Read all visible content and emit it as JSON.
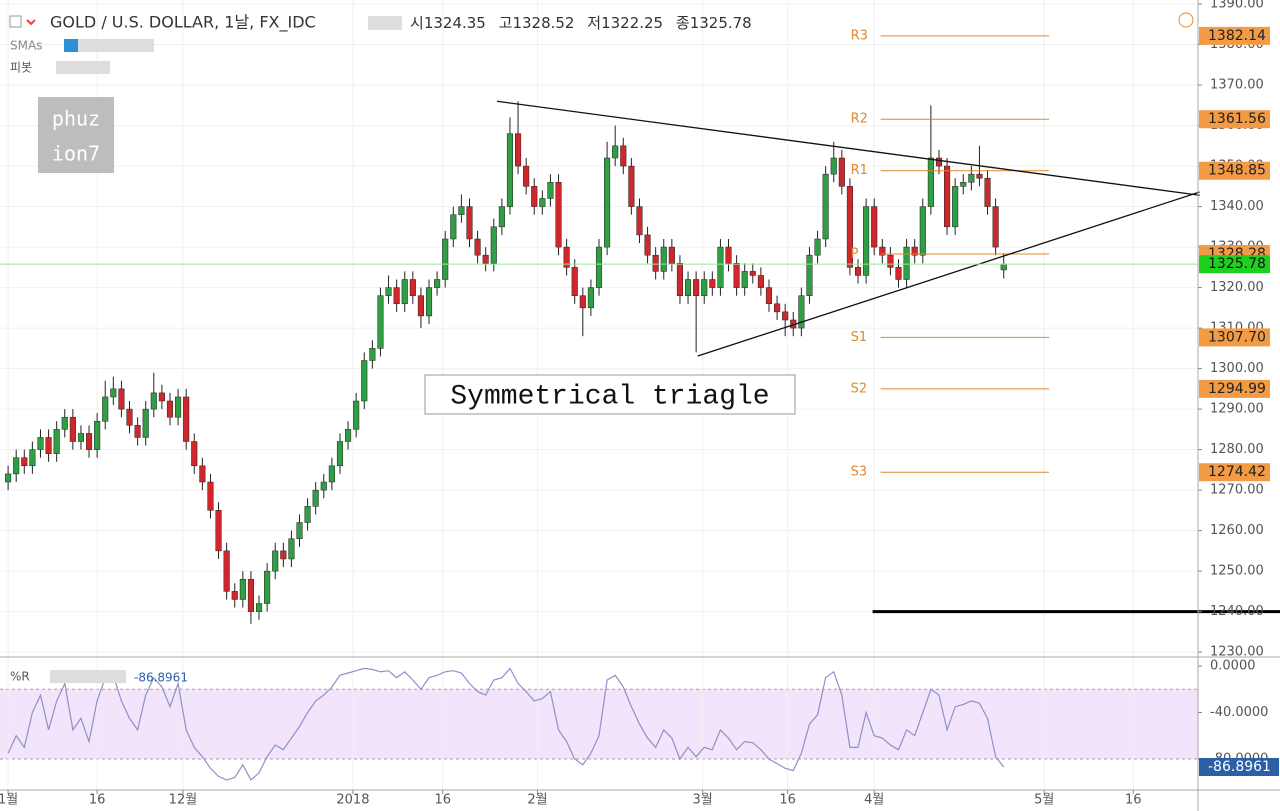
{
  "chart_data": {
    "type": "candlestick",
    "title": "GOLD / U.S. DOLLAR, 1날, FX_IDC",
    "ohlc_labels": [
      "시",
      "고",
      "저",
      "종"
    ],
    "indicators": [
      "SMAs",
      "피봇"
    ],
    "watermark": [
      "phuz",
      "ion7"
    ],
    "annotation": "Symmetrical triagle",
    "colors": {
      "up": "#2f9e44",
      "down": "#d0272c",
      "pivot": "#e0882f",
      "last": "#1fd11f",
      "wr": "#8c92c8",
      "band": "#f1e4fb"
    },
    "xlim": [
      -1,
      147
    ],
    "xticks": [
      {
        "value": 0,
        "label": "1월"
      },
      {
        "value": 11,
        "label": "16"
      },
      {
        "value": 21.6,
        "label": "12월"
      },
      {
        "value": 42.6,
        "label": "2018"
      },
      {
        "value": 53.7,
        "label": "16"
      },
      {
        "value": 65.4,
        "label": "2월"
      },
      {
        "value": 85.8,
        "label": "3월"
      },
      {
        "value": 96.3,
        "label": "16"
      },
      {
        "value": 107,
        "label": "4월"
      },
      {
        "value": 128,
        "label": "5월"
      },
      {
        "value": 139,
        "label": "16"
      }
    ],
    "ylim": [
      1228.8,
      1391
    ],
    "yticks": [
      {
        "value": 1230,
        "label": "1230.00"
      },
      {
        "value": 1240,
        "label": "1240.00"
      },
      {
        "value": 1250,
        "label": "1250.00"
      },
      {
        "value": 1260,
        "label": "1260.00"
      },
      {
        "value": 1270,
        "label": "1270.00"
      },
      {
        "value": 1280,
        "label": "1280.00"
      },
      {
        "value": 1290,
        "label": "1290.00"
      },
      {
        "value": 1300,
        "label": "1300.00"
      },
      {
        "value": 1310,
        "label": "1310.00"
      },
      {
        "value": 1320,
        "label": "1320.00"
      },
      {
        "value": 1330,
        "label": "1330.00"
      },
      {
        "value": 1340,
        "label": "1340.00"
      },
      {
        "value": 1350,
        "label": "1350.00"
      },
      {
        "value": 1360,
        "label": "1360.00"
      },
      {
        "value": 1370,
        "label": "1370.00"
      },
      {
        "value": 1380,
        "label": "1380.00"
      },
      {
        "value": 1390,
        "label": "1390.00"
      }
    ],
    "ohlc": [
      [
        1272,
        1276,
        1270,
        1274
      ],
      [
        1274,
        1280,
        1272,
        1278
      ],
      [
        1278,
        1280,
        1274,
        1276
      ],
      [
        1276,
        1282,
        1274,
        1280
      ],
      [
        1280,
        1285,
        1278,
        1283
      ],
      [
        1283,
        1285,
        1277,
        1279
      ],
      [
        1279,
        1287,
        1277,
        1285
      ],
      [
        1285,
        1290,
        1283,
        1288
      ],
      [
        1288,
        1290,
        1280,
        1282
      ],
      [
        1282,
        1286,
        1280,
        1284
      ],
      [
        1284,
        1286,
        1278,
        1280
      ],
      [
        1280,
        1289,
        1278,
        1287
      ],
      [
        1287,
        1297,
        1285,
        1293
      ],
      [
        1293,
        1298,
        1291,
        1295
      ],
      [
        1295,
        1297,
        1288,
        1290
      ],
      [
        1290,
        1292,
        1284,
        1286
      ],
      [
        1286,
        1288,
        1281,
        1283
      ],
      [
        1283,
        1292,
        1281,
        1290
      ],
      [
        1290,
        1299,
        1288,
        1294
      ],
      [
        1294,
        1296,
        1290,
        1292
      ],
      [
        1292,
        1294,
        1286,
        1288
      ],
      [
        1288,
        1295,
        1286,
        1293
      ],
      [
        1293,
        1295,
        1280,
        1282
      ],
      [
        1282,
        1284,
        1274,
        1276
      ],
      [
        1276,
        1278,
        1270,
        1272
      ],
      [
        1272,
        1274,
        1263,
        1265
      ],
      [
        1265,
        1267,
        1253,
        1255
      ],
      [
        1255,
        1257,
        1243,
        1245
      ],
      [
        1245,
        1247,
        1241,
        1243
      ],
      [
        1243,
        1250,
        1241,
        1248
      ],
      [
        1248,
        1250,
        1237,
        1240
      ],
      [
        1240,
        1244,
        1238,
        1242
      ],
      [
        1242,
        1252,
        1240,
        1250
      ],
      [
        1250,
        1257,
        1248,
        1255
      ],
      [
        1255,
        1257,
        1251,
        1253
      ],
      [
        1253,
        1260,
        1251,
        1258
      ],
      [
        1258,
        1264,
        1256,
        1262
      ],
      [
        1262,
        1268,
        1260,
        1266
      ],
      [
        1266,
        1272,
        1264,
        1270
      ],
      [
        1270,
        1274,
        1268,
        1272
      ],
      [
        1272,
        1278,
        1270,
        1276
      ],
      [
        1276,
        1284,
        1274,
        1282
      ],
      [
        1282,
        1287,
        1280,
        1285
      ],
      [
        1285,
        1294,
        1283,
        1292
      ],
      [
        1292,
        1304,
        1290,
        1302
      ],
      [
        1302,
        1307,
        1300,
        1305
      ],
      [
        1305,
        1320,
        1303,
        1318
      ],
      [
        1318,
        1323,
        1316,
        1320
      ],
      [
        1320,
        1322,
        1314,
        1316
      ],
      [
        1316,
        1324,
        1314,
        1322
      ],
      [
        1322,
        1324,
        1316,
        1318
      ],
      [
        1318,
        1320,
        1310,
        1313
      ],
      [
        1313,
        1322,
        1311,
        1320
      ],
      [
        1320,
        1324,
        1318,
        1322
      ],
      [
        1322,
        1334,
        1320,
        1332
      ],
      [
        1332,
        1340,
        1330,
        1338
      ],
      [
        1338,
        1343,
        1336,
        1340
      ],
      [
        1340,
        1342,
        1330,
        1332
      ],
      [
        1332,
        1334,
        1326,
        1328
      ],
      [
        1328,
        1330,
        1324,
        1326
      ],
      [
        1326,
        1337,
        1324,
        1335
      ],
      [
        1335,
        1342,
        1333,
        1340
      ],
      [
        1340,
        1362,
        1338,
        1358
      ],
      [
        1358,
        1366,
        1348,
        1350
      ],
      [
        1350,
        1352,
        1343,
        1345
      ],
      [
        1345,
        1347,
        1338,
        1340
      ],
      [
        1340,
        1344,
        1338,
        1342
      ],
      [
        1342,
        1348,
        1340,
        1346
      ],
      [
        1346,
        1348,
        1328,
        1330
      ],
      [
        1330,
        1332,
        1323,
        1325
      ],
      [
        1325,
        1327,
        1316,
        1318
      ],
      [
        1318,
        1320,
        1308,
        1315
      ],
      [
        1315,
        1322,
        1313,
        1320
      ],
      [
        1320,
        1332,
        1318,
        1330
      ],
      [
        1330,
        1356,
        1328,
        1352
      ],
      [
        1352,
        1360,
        1350,
        1355
      ],
      [
        1355,
        1357,
        1348,
        1350
      ],
      [
        1350,
        1352,
        1338,
        1340
      ],
      [
        1340,
        1342,
        1331,
        1333
      ],
      [
        1333,
        1335,
        1326,
        1328
      ],
      [
        1328,
        1330,
        1322,
        1324
      ],
      [
        1324,
        1332,
        1322,
        1330
      ],
      [
        1330,
        1332,
        1324,
        1326
      ],
      [
        1326,
        1328,
        1316,
        1318
      ],
      [
        1318,
        1324,
        1316,
        1322
      ],
      [
        1322,
        1324,
        1304,
        1318
      ],
      [
        1318,
        1324,
        1316,
        1322
      ],
      [
        1322,
        1324,
        1318,
        1320
      ],
      [
        1320,
        1332,
        1318,
        1330
      ],
      [
        1330,
        1332,
        1324,
        1326
      ],
      [
        1326,
        1328,
        1318,
        1320
      ],
      [
        1320,
        1326,
        1318,
        1324
      ],
      [
        1324,
        1326,
        1321,
        1323
      ],
      [
        1323,
        1325,
        1318,
        1320
      ],
      [
        1320,
        1322,
        1314,
        1316
      ],
      [
        1316,
        1318,
        1312,
        1314
      ],
      [
        1314,
        1316,
        1308,
        1312
      ],
      [
        1312,
        1314,
        1308,
        1310
      ],
      [
        1310,
        1320,
        1308,
        1318
      ],
      [
        1318,
        1330,
        1316,
        1328
      ],
      [
        1328,
        1334,
        1326,
        1332
      ],
      [
        1332,
        1350,
        1330,
        1348
      ],
      [
        1348,
        1356,
        1346,
        1352
      ],
      [
        1352,
        1354,
        1343,
        1345
      ],
      [
        1345,
        1347,
        1323,
        1325
      ],
      [
        1325,
        1327,
        1321,
        1323
      ],
      [
        1323,
        1342,
        1321,
        1340
      ],
      [
        1340,
        1342,
        1328,
        1330
      ],
      [
        1330,
        1332,
        1326,
        1328
      ],
      [
        1328,
        1330,
        1323,
        1325
      ],
      [
        1325,
        1327,
        1320,
        1322
      ],
      [
        1322,
        1332,
        1320,
        1330
      ],
      [
        1330,
        1332,
        1326,
        1328
      ],
      [
        1328,
        1342,
        1326,
        1340
      ],
      [
        1340,
        1365,
        1338,
        1352
      ],
      [
        1352,
        1354,
        1348,
        1350
      ],
      [
        1350,
        1352,
        1333,
        1335
      ],
      [
        1335,
        1347,
        1333,
        1345
      ],
      [
        1345,
        1348,
        1343,
        1346
      ],
      [
        1346,
        1350,
        1344,
        1348
      ],
      [
        1348,
        1355,
        1345,
        1347
      ],
      [
        1347,
        1349,
        1338,
        1340
      ],
      [
        1340,
        1342,
        1328,
        1330
      ],
      [
        1324.35,
        1328.52,
        1322.25,
        1325.78
      ]
    ],
    "pivot_span": [
      106.8,
      128.6
    ],
    "pivots": [
      {
        "name": "R3",
        "value": 1382.14
      },
      {
        "name": "R2",
        "value": 1361.56
      },
      {
        "name": "R1",
        "value": 1348.85
      },
      {
        "name": "P",
        "value": 1328.28
      },
      {
        "name": "S1",
        "value": 1307.7,
        "value_label": "1307.70"
      },
      {
        "name": "S2",
        "value": 1294.99
      },
      {
        "name": "S3",
        "value": 1274.42
      }
    ],
    "trendlines": [
      [
        60.4,
        1366,
        147.2,
        1342.8
      ],
      [
        85.2,
        1303.1,
        147.2,
        1343.6
      ]
    ],
    "hline": {
      "from": 106.8,
      "value": 1240
    },
    "wr": {
      "name": "%R",
      "ylim": [
        -106.7,
        5.2
      ],
      "band": [
        -20,
        -80
      ],
      "yticks": [
        {
          "value": 0,
          "label": "0.0000"
        },
        {
          "value": -40,
          "label": "-40.0000"
        },
        {
          "value": -80,
          "label": "-80.0000"
        }
      ],
      "value_label": "-86.8961",
      "values": [
        -75,
        -60,
        -70,
        -40,
        -25,
        -55,
        -30,
        -15,
        -55,
        -45,
        -65,
        -30,
        -10,
        -8,
        -30,
        -45,
        -55,
        -25,
        -10,
        -18,
        -35,
        -15,
        -55,
        -70,
        -78,
        -88,
        -95,
        -98,
        -96,
        -85,
        -98,
        -92,
        -78,
        -68,
        -72,
        -62,
        -52,
        -40,
        -30,
        -25,
        -18,
        -8,
        -6,
        -4,
        -2,
        -3,
        -5,
        -4,
        -10,
        -5,
        -12,
        -20,
        -10,
        -8,
        -5,
        -4,
        -6,
        -15,
        -22,
        -25,
        -12,
        -10,
        -2,
        -15,
        -22,
        -30,
        -28,
        -22,
        -55,
        -65,
        -80,
        -85,
        -75,
        -60,
        -12,
        -8,
        -18,
        -35,
        -50,
        -62,
        -70,
        -55,
        -62,
        -80,
        -70,
        -78,
        -70,
        -72,
        -55,
        -62,
        -72,
        -65,
        -66,
        -72,
        -80,
        -84,
        -88,
        -90,
        -75,
        -50,
        -42,
        -10,
        -5,
        -25,
        -70,
        -70,
        -40,
        -60,
        -62,
        -68,
        -72,
        -55,
        -60,
        -40,
        -20,
        -25,
        -55,
        -35,
        -33,
        -30,
        -32,
        -45,
        -78,
        -86.8961
      ]
    }
  }
}
